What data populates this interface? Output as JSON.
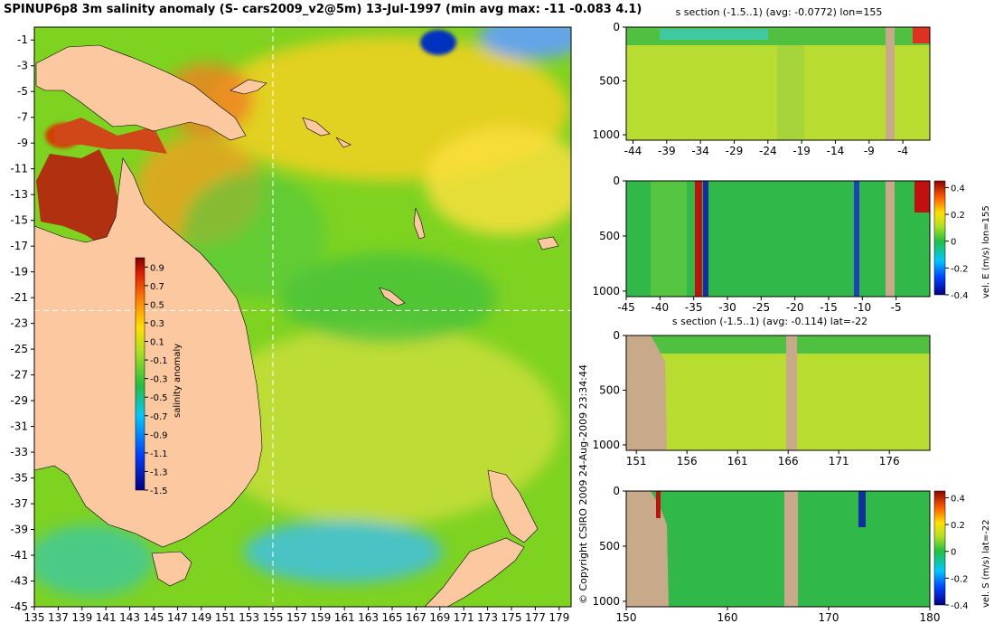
{
  "title": "SPINUP6p8 3m salinity anomaly (S- cars2009_v2@5m) 13-Jul-1997 (min avg max: -11 -0.083 4.1)",
  "copyright": "© Copyright CSIRO 2009   24-Aug-2009 23:34:44",
  "colors": {
    "ocean_base": "#7ed321",
    "land": "#fbc8a0",
    "section_land": "#c8aa8a",
    "crosshair": "#ffffff"
  },
  "chart_data": [
    {
      "type": "heatmap",
      "name": "map",
      "x_ticks": [
        "135",
        "137",
        "139",
        "141",
        "143",
        "145",
        "147",
        "149",
        "151",
        "153",
        "155",
        "157",
        "159",
        "161",
        "163",
        "165",
        "167",
        "169",
        "171",
        "173",
        "175",
        "177",
        "179"
      ],
      "y_ticks": [
        "-1",
        "-3",
        "-5",
        "-7",
        "-9",
        "-11",
        "-13",
        "-15",
        "-17",
        "-19",
        "-21",
        "-23",
        "-25",
        "-27",
        "-29",
        "-31",
        "-33",
        "-35",
        "-37",
        "-39",
        "-41",
        "-43",
        "-45"
      ],
      "xlim": [
        135,
        180
      ],
      "ylim": [
        -45,
        0
      ],
      "crosshair": {
        "lon": 155,
        "lat": -22
      },
      "colorbar": {
        "label": "salinity anomaly",
        "ticks": [
          "0.9",
          "0.7",
          "0.5",
          "0.3",
          "0.1",
          "-0.1",
          "-0.3",
          "-0.5",
          "-0.7",
          "-0.9",
          "-1.1",
          "-1.3",
          "-1.5"
        ],
        "range": [
          -1.5,
          1.0
        ]
      }
    },
    {
      "type": "heatmap",
      "name": "salinity-section-lon155",
      "title": "s section (-1.5..1) (avg: -0.0772) lon=155",
      "x_ticks": [
        "-44",
        "-39",
        "-34",
        "-29",
        "-24",
        "-19",
        "-14",
        "-9",
        "-4"
      ],
      "y_ticks": [
        "0",
        "500",
        "1000"
      ],
      "xlim": [
        -45,
        0
      ],
      "ylim": [
        1050,
        0
      ]
    },
    {
      "type": "heatmap",
      "name": "velocity-east-lon155",
      "colorbar": {
        "label": "vel. E (m/s) lon=155",
        "ticks": [
          "0.4",
          "0.2",
          "0",
          "-0.2",
          "-0.4"
        ],
        "range": [
          -0.4,
          0.45
        ]
      },
      "x_ticks": [
        "-45",
        "-40",
        "-35",
        "-30",
        "-25",
        "-20",
        "-15",
        "-10",
        "-5"
      ],
      "y_ticks": [
        "0",
        "500",
        "1000"
      ],
      "xlim": [
        -45,
        0
      ],
      "ylim": [
        1050,
        0
      ]
    },
    {
      "type": "heatmap",
      "name": "salinity-section-lat-22",
      "title": "s section (-1.5..1) (avg: -0.114) lat=-22",
      "x_ticks": [
        "151",
        "156",
        "161",
        "166",
        "171",
        "176"
      ],
      "y_ticks": [
        "0",
        "500",
        "1000"
      ],
      "xlim": [
        150,
        180
      ],
      "ylim": [
        1050,
        0
      ]
    },
    {
      "type": "heatmap",
      "name": "velocity-south-lat-22",
      "colorbar": {
        "label": "vel. S (m/s) lat=-22",
        "ticks": [
          "0.4",
          "0.2",
          "0",
          "-0.2",
          "-0.4"
        ],
        "range": [
          -0.4,
          0.45
        ]
      },
      "x_ticks": [
        "150",
        "160",
        "170",
        "180"
      ],
      "y_ticks": [
        "0",
        "500",
        "1000"
      ],
      "xlim": [
        150,
        180
      ],
      "ylim": [
        1050,
        0
      ]
    }
  ]
}
